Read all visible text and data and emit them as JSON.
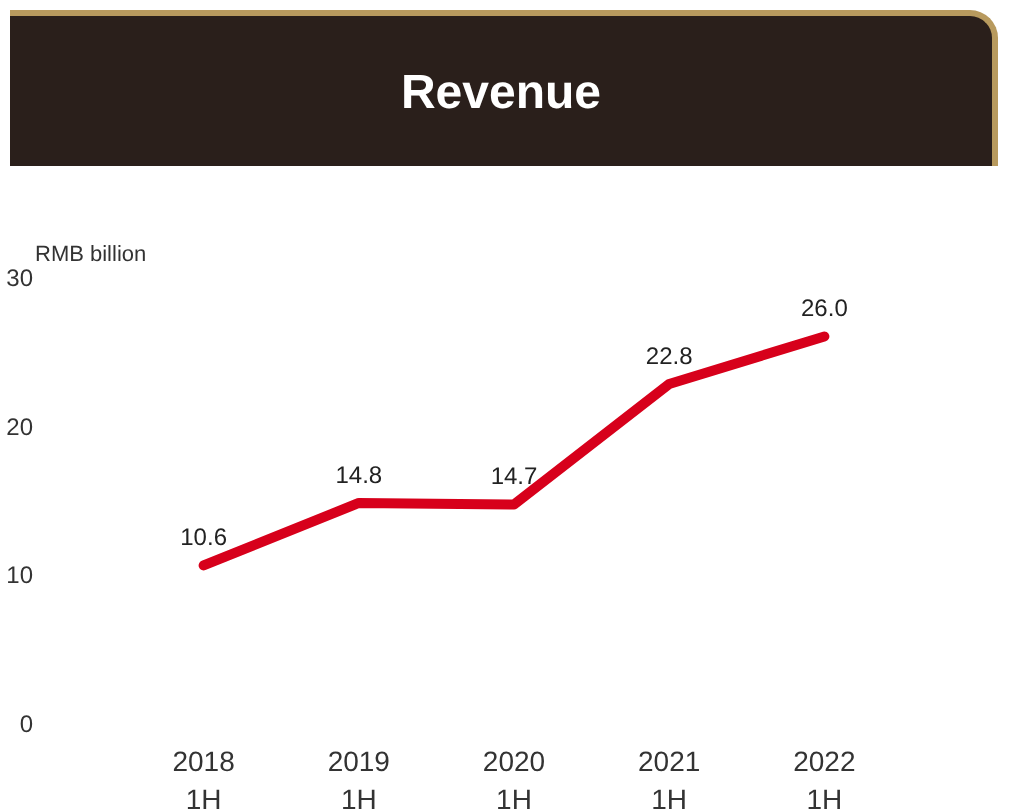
{
  "chart_data": {
    "type": "line",
    "title": "Revenue",
    "ylabel": "RMB billion",
    "categories": [
      "2018\n1H",
      "2019\n1H",
      "2020\n1H",
      "2021\n1H",
      "2022\n1H"
    ],
    "series": [
      {
        "color": "#d7001b",
        "values": [
          10.6,
          14.8,
          14.7,
          22.8,
          26.0
        ],
        "value_labels": [
          "10.6",
          "14.8",
          "14.7",
          "22.8",
          "26.0"
        ]
      }
    ],
    "ylim": [
      0,
      30
    ],
    "yticks": [
      0,
      10,
      20,
      30
    ],
    "grid": false,
    "marker": "none",
    "line_style": "solid"
  }
}
